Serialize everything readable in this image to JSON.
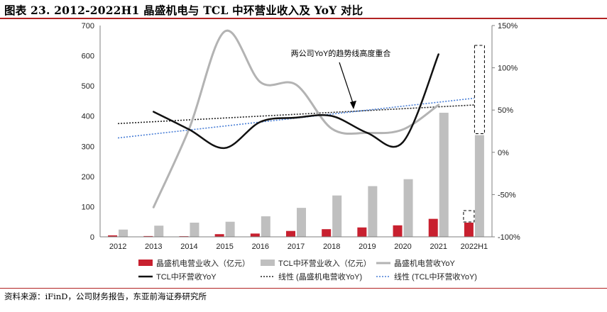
{
  "figure": {
    "title": "图表 23. 2012-2022H1 晶盛机电与 TCL 中环营业收入及 YoY 对比",
    "source": "资料来源：iFinD，公司财务报告，东亚前海证券研究所"
  },
  "chart_data": {
    "type": "bar",
    "categories": [
      "2012",
      "2013",
      "2014",
      "2015",
      "2016",
      "2017",
      "2018",
      "2019",
      "2020",
      "2021",
      "2022H1"
    ],
    "left_axis": {
      "ylim": [
        0,
        700
      ],
      "ticks": [
        "0",
        "100",
        "200",
        "300",
        "400",
        "500",
        "600",
        "700"
      ]
    },
    "right_axis": {
      "ylim": [
        -100,
        150
      ],
      "ticks": [
        "-100%",
        "-50%",
        "0%",
        "50%",
        "100%",
        "150%"
      ]
    },
    "series": [
      {
        "name": "晶盛机电营业收入（亿元）",
        "kind": "bar",
        "axis": "left",
        "color": "#c8202f",
        "values": [
          4.9,
          2.6,
          2.2,
          8.9,
          10.9,
          19.5,
          25.4,
          31.1,
          38.1,
          59.6,
          47.0
        ]
      },
      {
        "name": "TCL中环营业收入（亿元）",
        "kind": "bar",
        "axis": "left",
        "color": "#bfbfbf",
        "values": [
          24,
          37,
          47,
          50,
          68,
          96,
          137,
          168,
          191,
          411,
          337
        ]
      },
      {
        "name": "晶盛机电营收YoY",
        "kind": "line",
        "axis": "right",
        "color": "#b3b3b3",
        "width": 3,
        "values": [
          null,
          -65,
          28,
          143,
          83,
          80,
          28,
          23,
          27,
          56,
          null
        ]
      },
      {
        "name": "TCL中环营收YoY",
        "kind": "line",
        "axis": "right",
        "color": "#111111",
        "width": 2.5,
        "values": [
          null,
          48,
          27,
          5,
          36,
          41,
          43,
          23,
          12,
          116,
          null
        ]
      },
      {
        "name": "线性 (晶盛机电营收YoY)",
        "kind": "trend",
        "axis": "right",
        "color": "#222222",
        "dash": "2,2",
        "values": [
          34,
          36.2,
          38.4,
          40.6,
          42.8,
          45,
          47.2,
          49.4,
          51.6,
          53.8,
          56
        ]
      },
      {
        "name": "线性 (TCL中环营收YoY)",
        "kind": "trend",
        "axis": "right",
        "color": "#4a7fd6",
        "dash": "2,2",
        "values": [
          17,
          21.7,
          26.4,
          31.1,
          35.8,
          40.5,
          45.2,
          49.9,
          54.6,
          59.3,
          64
        ]
      }
    ],
    "legend_order": [
      0,
      1,
      2,
      3,
      4,
      5
    ],
    "annotation": {
      "text": "两公司YoY的趋势线高度重合"
    }
  }
}
